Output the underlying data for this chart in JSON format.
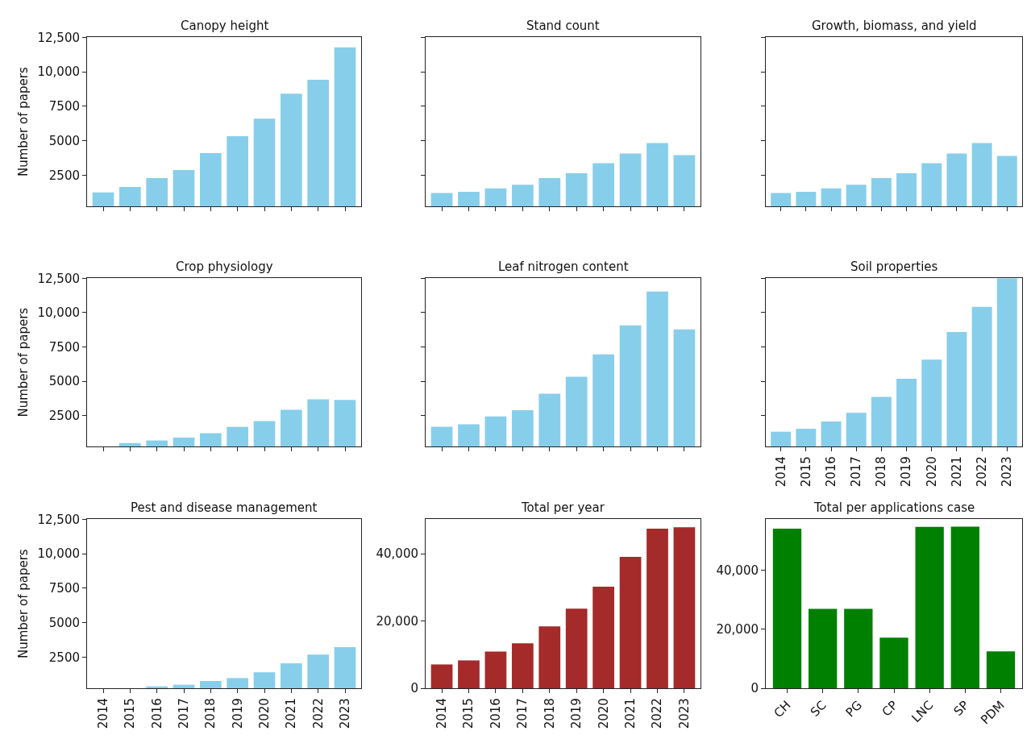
{
  "chart_data": [
    {
      "type": "bar",
      "title": "Canopy height",
      "ylabel": "Number of papers",
      "tick_labels": "y",
      "color": "#87ceeb",
      "categories": [
        "2014",
        "2015",
        "2016",
        "2017",
        "2018",
        "2019",
        "2020",
        "2021",
        "2022",
        "2023"
      ],
      "values": [
        1260,
        1660,
        2290,
        2880,
        4110,
        5340,
        6600,
        8420,
        9420,
        11770
      ],
      "ylim": [
        250,
        12500
      ],
      "yticks": [
        2500,
        5000,
        7500,
        {
          "value": 10000,
          "label": "10,000"
        },
        {
          "value": 12500,
          "label": "12,500"
        }
      ]
    },
    {
      "type": "bar",
      "title": "Stand count",
      "tick_labels": false,
      "color": "#87ceeb",
      "categories": [
        "2014",
        "2015",
        "2016",
        "2017",
        "2018",
        "2019",
        "2020",
        "2021",
        "2022",
        "2023"
      ],
      "values": [
        1220,
        1310,
        1550,
        1810,
        2290,
        2650,
        3370,
        4080,
        4830,
        3960
      ],
      "ylim": [
        250,
        12500
      ],
      "yticks": [
        {
          "value": 2500,
          "label": null
        },
        {
          "value": 5000,
          "label": null
        },
        {
          "value": 7500,
          "label": null
        },
        {
          "value": 10000,
          "label": null
        },
        {
          "value": 12500,
          "label": null
        }
      ]
    },
    {
      "type": "bar",
      "title": "Growth, biomass, and yield",
      "tick_labels": false,
      "color": "#87ceeb",
      "categories": [
        "2014",
        "2015",
        "2016",
        "2017",
        "2018",
        "2019",
        "2020",
        "2021",
        "2022",
        "2023"
      ],
      "values": [
        1220,
        1310,
        1550,
        1810,
        2290,
        2650,
        3370,
        4080,
        4830,
        3900
      ],
      "ylim": [
        250,
        12500
      ],
      "yticks": [
        {
          "value": 2500,
          "label": null
        },
        {
          "value": 5000,
          "label": null
        },
        {
          "value": 7500,
          "label": null
        },
        {
          "value": 10000,
          "label": null
        },
        {
          "value": 12500,
          "label": null
        }
      ]
    },
    {
      "type": "bar",
      "title": "Crop physiology",
      "ylabel": "Number of papers",
      "tick_labels": "y",
      "color": "#87ceeb",
      "categories": [
        "2014",
        "2015",
        "2016",
        "2017",
        "2018",
        "2019",
        "2020",
        "2021",
        "2022",
        "2023"
      ],
      "values": [
        null,
        500,
        690,
        900,
        1220,
        1680,
        2100,
        2920,
        3680,
        3650
      ],
      "ylim": [
        250,
        12500
      ],
      "yticks": [
        2500,
        5000,
        7500,
        {
          "value": 10000,
          "label": "10,000"
        },
        {
          "value": 12500,
          "label": "12,500"
        }
      ]
    },
    {
      "type": "bar",
      "title": "Leaf nitrogen content",
      "tick_labels": false,
      "color": "#87ceeb",
      "categories": [
        "2014",
        "2015",
        "2016",
        "2017",
        "2018",
        "2019",
        "2020",
        "2021",
        "2022",
        "2023"
      ],
      "values": [
        1690,
        1870,
        2440,
        2890,
        4100,
        5330,
        6960,
        9070,
        11540,
        8770
      ],
      "ylim": [
        250,
        12500
      ],
      "yticks": [
        {
          "value": 2500,
          "label": null
        },
        {
          "value": 5000,
          "label": null
        },
        {
          "value": 7500,
          "label": null
        },
        {
          "value": 10000,
          "label": null
        },
        {
          "value": 12500,
          "label": null
        }
      ]
    },
    {
      "type": "bar",
      "title": "Soil properties",
      "tick_labels": "x",
      "color": "#87ceeb",
      "categories": [
        "2014",
        "2015",
        "2016",
        "2017",
        "2018",
        "2019",
        "2020",
        "2021",
        "2022",
        "2023"
      ],
      "values": [
        1330,
        1540,
        2080,
        2710,
        3860,
        5180,
        6570,
        8580,
        10420,
        12500
      ],
      "ylim": [
        250,
        12500
      ],
      "yticks": [
        {
          "value": 2500,
          "label": null
        },
        {
          "value": 5000,
          "label": null
        },
        {
          "value": 7500,
          "label": null
        },
        {
          "value": 10000,
          "label": null
        },
        {
          "value": 12500,
          "label": null
        }
      ]
    },
    {
      "type": "bar",
      "title": "Pest and disease management",
      "ylabel": "Number of papers",
      "color": "#87ceeb",
      "categories": [
        "2014",
        "2015",
        "2016",
        "2017",
        "2018",
        "2019",
        "2020",
        "2021",
        "2022",
        "2023"
      ],
      "values": [
        null,
        null,
        390,
        510,
        780,
        990,
        1410,
        2060,
        2690,
        3230
      ],
      "ylim": [
        250,
        12500
      ],
      "yticks": [
        2500,
        5000,
        7500,
        {
          "value": 10000,
          "label": "10,000"
        },
        {
          "value": 12500,
          "label": "12,500"
        }
      ]
    },
    {
      "type": "bar",
      "title": "Total per year",
      "color": "#a52a2a",
      "categories": [
        "2014",
        "2015",
        "2016",
        "2017",
        "2018",
        "2019",
        "2020",
        "2021",
        "2022",
        "2023"
      ],
      "values": [
        7100,
        8300,
        10900,
        13400,
        18400,
        23700,
        30200,
        39100,
        47500,
        47900
      ],
      "ylim": [
        0,
        50300
      ],
      "yticks": [
        0,
        {
          "value": 20000,
          "label": "20,000"
        },
        {
          "value": 40000,
          "label": "40,000"
        }
      ]
    },
    {
      "type": "bar",
      "title": "Total per applications case",
      "color": "#008000",
      "categories": [
        "CH",
        "SC",
        "PG",
        "CP",
        "LNC",
        "SP",
        "PDM"
      ],
      "values": [
        54000,
        26900,
        26900,
        17100,
        54600,
        54700,
        12500
      ],
      "ylim": [
        0,
        57200
      ],
      "yticks": [
        0,
        {
          "value": 20000,
          "label": "20,000"
        },
        {
          "value": 40000,
          "label": "40,000"
        }
      ]
    }
  ]
}
